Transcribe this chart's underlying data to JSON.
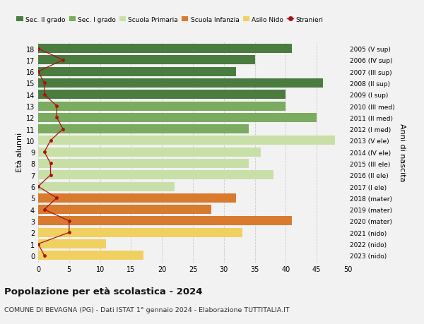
{
  "ages": [
    18,
    17,
    16,
    15,
    14,
    13,
    12,
    11,
    10,
    9,
    8,
    7,
    6,
    5,
    4,
    3,
    2,
    1,
    0
  ],
  "years": [
    "2005 (V sup)",
    "2006 (IV sup)",
    "2007 (III sup)",
    "2008 (II sup)",
    "2009 (I sup)",
    "2010 (III med)",
    "2011 (II med)",
    "2012 (I med)",
    "2013 (V ele)",
    "2014 (IV ele)",
    "2015 (III ele)",
    "2016 (II ele)",
    "2017 (I ele)",
    "2018 (mater)",
    "2019 (mater)",
    "2020 (mater)",
    "2021 (nido)",
    "2022 (nido)",
    "2023 (nido)"
  ],
  "bar_values": [
    41,
    35,
    32,
    46,
    40,
    40,
    45,
    34,
    48,
    36,
    34,
    38,
    22,
    32,
    28,
    41,
    33,
    11,
    17
  ],
  "bar_colors": [
    "#4a7c3f",
    "#4a7c3f",
    "#4a7c3f",
    "#4a7c3f",
    "#4a7c3f",
    "#7aab5e",
    "#7aab5e",
    "#7aab5e",
    "#c8dfa8",
    "#c8dfa8",
    "#c8dfa8",
    "#c8dfa8",
    "#c8dfa8",
    "#d97b2e",
    "#d97b2e",
    "#d97b2e",
    "#f0d060",
    "#f0d060",
    "#f0d060"
  ],
  "stranieri": [
    0,
    4,
    0,
    1,
    1,
    3,
    3,
    4,
    2,
    1,
    2,
    2,
    0,
    3,
    1,
    5,
    5,
    0,
    1
  ],
  "legend_labels": [
    "Sec. II grado",
    "Sec. I grado",
    "Scuola Primaria",
    "Scuola Infanzia",
    "Asilo Nido",
    "Stranieri"
  ],
  "legend_colors": [
    "#4a7c3f",
    "#7aab5e",
    "#c8dfa8",
    "#d97b2e",
    "#f0d060",
    "#b22222"
  ],
  "ylabel_left": "Età alunni",
  "ylabel_right": "Anni di nascita",
  "title": "Popolazione per età scolastica - 2024",
  "subtitle": "COMUNE DI BEVAGNA (PG) - Dati ISTAT 1° gennaio 2024 - Elaborazione TUTTITALIA.IT",
  "xlim": [
    0,
    50
  ],
  "xticks": [
    0,
    5,
    10,
    15,
    20,
    25,
    30,
    35,
    40,
    45,
    50
  ],
  "bg_color": "#f2f2f2",
  "bar_height": 0.8,
  "stranieri_color": "#aa1111",
  "stranieri_line_color": "#aa1111",
  "grid_color": "#cccccc"
}
